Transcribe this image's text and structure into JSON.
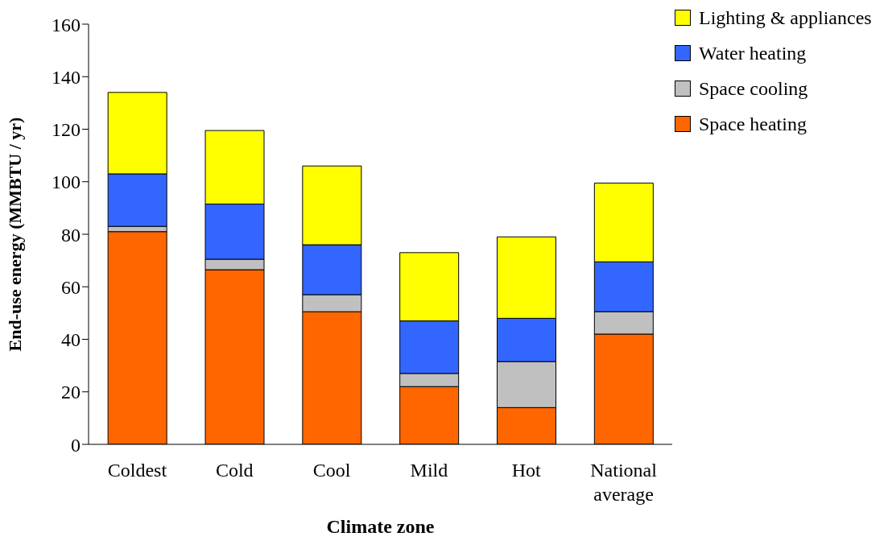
{
  "chart_data": {
    "type": "bar",
    "stacked": true,
    "xlabel": "Climate zone",
    "ylabel": "End-use energy (MMBTU / yr)",
    "categories": [
      "Coldest",
      "Cold",
      "Cool",
      "Mild",
      "Hot",
      "National average"
    ],
    "series": [
      {
        "name": "Space heating",
        "color": "#ff6600",
        "values": [
          81,
          66.5,
          50.5,
          22,
          14,
          42
        ]
      },
      {
        "name": "Space cooling",
        "color": "#c0c0c0",
        "values": [
          2,
          4,
          6.5,
          5,
          17.5,
          8.5
        ]
      },
      {
        "name": "Water heating",
        "color": "#3366ff",
        "values": [
          20,
          21,
          19,
          20,
          16.5,
          19
        ]
      },
      {
        "name": "Lighting & appliances",
        "color": "#ffff00",
        "values": [
          31,
          28,
          30,
          26,
          31,
          30
        ]
      }
    ],
    "ylim": [
      0,
      160
    ],
    "yticks": [
      0,
      20,
      40,
      60,
      80,
      100,
      120,
      140,
      160
    ],
    "legend": "top right"
  }
}
